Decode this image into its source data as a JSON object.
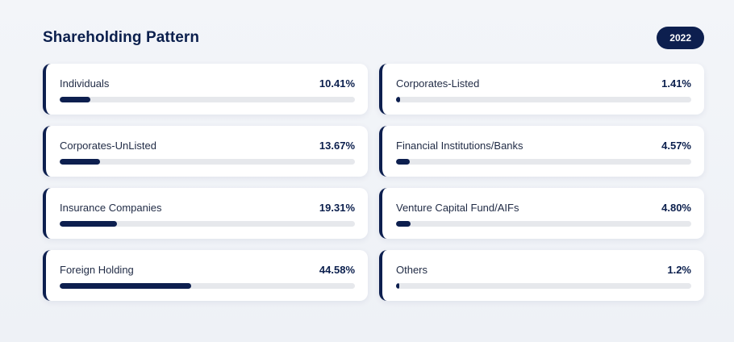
{
  "header": {
    "title": "Shareholding Pattern",
    "year": "2022"
  },
  "colors": {
    "accent": "#0d1f4f",
    "track": "#e6e8ec",
    "background": "#f3f5f9"
  },
  "items": [
    {
      "label": "Individuals",
      "value": "10.41%",
      "fill_percent": 10.41
    },
    {
      "label": "Corporates-Listed",
      "value": "1.41%",
      "fill_percent": 1.41
    },
    {
      "label": "Corporates-UnListed",
      "value": "13.67%",
      "fill_percent": 13.67
    },
    {
      "label": "Financial Institutions/Banks",
      "value": "4.57%",
      "fill_percent": 4.57
    },
    {
      "label": "Insurance Companies",
      "value": "19.31%",
      "fill_percent": 19.31
    },
    {
      "label": "Venture Capital Fund/AIFs",
      "value": "4.80%",
      "fill_percent": 4.8
    },
    {
      "label": "Foreign Holding",
      "value": "44.58%",
      "fill_percent": 44.58
    },
    {
      "label": "Others",
      "value": "1.2%",
      "fill_percent": 1.2
    }
  ]
}
